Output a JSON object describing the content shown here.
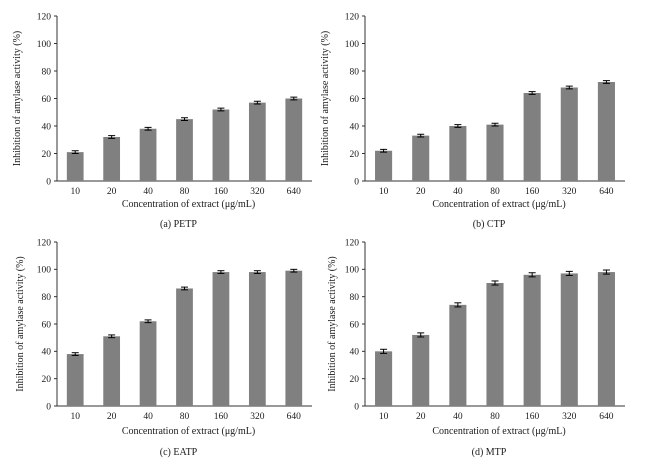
{
  "chart_data": [
    {
      "type": "bar",
      "caption": "(a)  PETP",
      "categories": [
        "10",
        "20",
        "40",
        "80",
        "160",
        "320",
        "640"
      ],
      "values": [
        21,
        32,
        38,
        45,
        52,
        57,
        60
      ],
      "errors": [
        1,
        1,
        1,
        1,
        1,
        1,
        1
      ],
      "xlabel": "Concentration of extract (μg/mL)",
      "ylabel": "Inhibition of amylase activity (%)",
      "ylim": [
        0,
        120
      ],
      "yticks": [
        0,
        20,
        40,
        60,
        80,
        100,
        120
      ],
      "grid": false,
      "bar_color": "#808080"
    },
    {
      "type": "bar",
      "caption": "(b)  CTP",
      "categories": [
        "10",
        "20",
        "40",
        "80",
        "160",
        "320",
        "640"
      ],
      "values": [
        22,
        33,
        40,
        41,
        64,
        68,
        72
      ],
      "errors": [
        1,
        1,
        1,
        1,
        1,
        1,
        1
      ],
      "xlabel": "Concentration of extract (μg/mL)",
      "ylabel": "Inhibition of amylase activity (%)",
      "ylim": [
        0,
        120
      ],
      "yticks": [
        0,
        20,
        40,
        60,
        80,
        100,
        120
      ],
      "grid": false,
      "bar_color": "#808080"
    },
    {
      "type": "bar",
      "caption": "(c)  EATP",
      "categories": [
        "10",
        "20",
        "40",
        "80",
        "160",
        "320",
        "640"
      ],
      "values": [
        38,
        51,
        62,
        86,
        98,
        98,
        99
      ],
      "errors": [
        1,
        1,
        1,
        1,
        1,
        1,
        1
      ],
      "xlabel": "Concentration of extract (μg/mL)",
      "ylabel": "Inhibition of amylase activity (%)",
      "ylim": [
        0,
        120
      ],
      "yticks": [
        0,
        20,
        40,
        60,
        80,
        100,
        120
      ],
      "grid": false,
      "bar_color": "#808080"
    },
    {
      "type": "bar",
      "caption": "(d)  MTP",
      "categories": [
        "10",
        "20",
        "40",
        "80",
        "160",
        "320",
        "640"
      ],
      "values": [
        40,
        52,
        74,
        90,
        96,
        97,
        98
      ],
      "errors": [
        1.5,
        1.5,
        1.5,
        1.5,
        1.5,
        1.5,
        1.5
      ],
      "xlabel": "Concentration of extract (μg/mL)",
      "ylabel": "Inhibition of amylase activity (%)",
      "ylim": [
        0,
        120
      ],
      "yticks": [
        0,
        20,
        40,
        60,
        80,
        100,
        120
      ],
      "grid": false,
      "bar_color": "#808080"
    }
  ]
}
